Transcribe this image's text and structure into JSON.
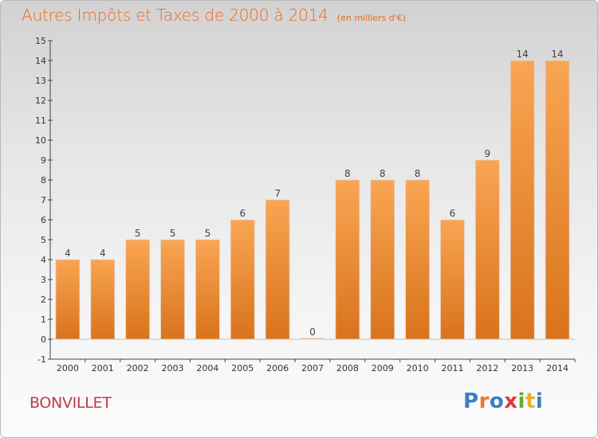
{
  "header": {
    "title": "Autres Impôts et Taxes de 2000 à 2014",
    "subtitle": "(en milliers d'€)"
  },
  "footer": {
    "commune": "BONVILLET",
    "logo_letters": [
      "P",
      "r",
      "o",
      "x",
      "i",
      "t",
      "i"
    ]
  },
  "colors": {
    "title": "#ea6a1f",
    "commune": "#c0394b",
    "bar_top": "#f9a553",
    "bar_bottom": "#d9731c",
    "logo": [
      "#3b7fc4",
      "#e87a2a",
      "#3b7fc4",
      "#e03a3a",
      "#6aaa2e",
      "#e8b12a",
      "#3b7fc4"
    ]
  },
  "chart_data": {
    "type": "bar",
    "title": "Autres Impôts et Taxes de 2000 à 2014",
    "subtitle": "(en milliers d'€)",
    "categories": [
      "2000",
      "2001",
      "2002",
      "2003",
      "2004",
      "2005",
      "2006",
      "2007",
      "2008",
      "2009",
      "2010",
      "2011",
      "2012",
      "2013",
      "2014"
    ],
    "values": [
      4,
      4,
      5,
      5,
      5,
      6,
      7,
      0,
      8,
      8,
      8,
      6,
      9,
      14,
      14
    ],
    "value_labels": [
      "4",
      "4",
      "5",
      "5",
      "5",
      "6",
      "7",
      "0",
      "8",
      "8",
      "8",
      "6",
      "9",
      "14",
      "14"
    ],
    "ylim": [
      -1,
      15
    ],
    "yticks": [
      -1,
      0,
      1,
      2,
      3,
      4,
      5,
      6,
      7,
      8,
      9,
      10,
      11,
      12,
      13,
      14,
      15
    ],
    "ytick_labels": [
      "-1",
      "0",
      "1",
      "2",
      "3",
      "4",
      "5",
      "6",
      "7",
      "8",
      "9",
      "10",
      "11",
      "12",
      "13",
      "14",
      "15"
    ],
    "xlabel": "",
    "ylabel": "",
    "grid": false,
    "legend": "none"
  }
}
